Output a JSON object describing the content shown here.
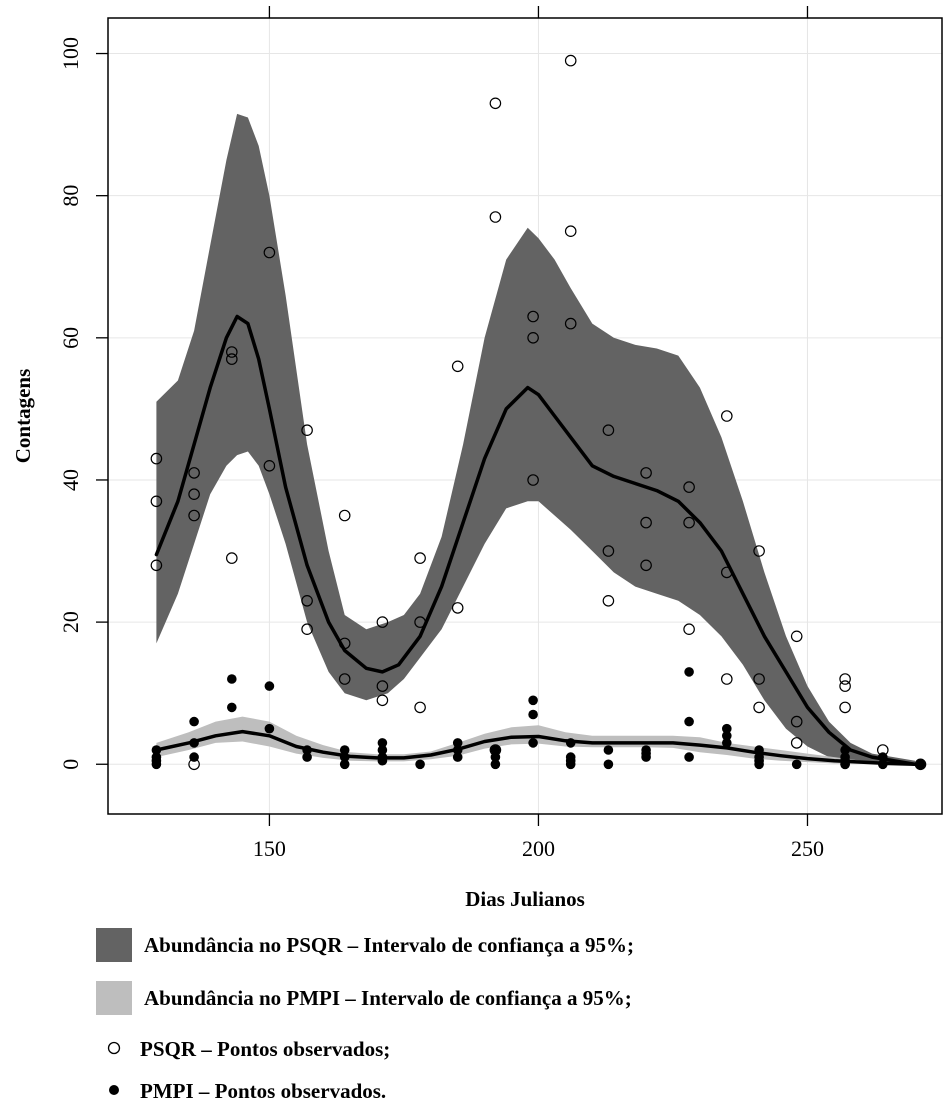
{
  "chart_data": {
    "type": "line",
    "xlabel": "Dias Julianos",
    "ylabel": "Contagens",
    "xlim": [
      120,
      275
    ],
    "ylim": [
      -7,
      105
    ],
    "x_ticks": [
      150,
      200,
      250
    ],
    "y_ticks": [
      0,
      20,
      40,
      60,
      80,
      100
    ],
    "grid": true,
    "colors": {
      "psqr_band": "#636363",
      "pmpi_band": "#bebebe",
      "line": "#000000",
      "grid": "#e6e6e6"
    },
    "bands": [
      {
        "name": "Abundância no PSQR – Intervalo de confiança a 95%;",
        "x": [
          129,
          133,
          136,
          139,
          142,
          144,
          146,
          148,
          150,
          153,
          157,
          161,
          164,
          168,
          172,
          175,
          178,
          182,
          186,
          190,
          194,
          198,
          200,
          203,
          206,
          210,
          214,
          218,
          222,
          226,
          230,
          234,
          238,
          242,
          246,
          250,
          254,
          258,
          262,
          266,
          270
        ],
        "upper": [
          51,
          54,
          61,
          73,
          85,
          91.5,
          91,
          87,
          80,
          66,
          45,
          30,
          21,
          19,
          20,
          21,
          24,
          32,
          45,
          60,
          71,
          75.5,
          74,
          71,
          67,
          62,
          60,
          59,
          58.5,
          57.5,
          53,
          46,
          37,
          27,
          18,
          11,
          6,
          3,
          1.5,
          1,
          0.5
        ],
        "lower": [
          17,
          24,
          31,
          38,
          42,
          43.5,
          44,
          42,
          38,
          31,
          20,
          13,
          10,
          9,
          10,
          12,
          15,
          19,
          25,
          31,
          36,
          37,
          37,
          35,
          33,
          30,
          27,
          25,
          24,
          23,
          21,
          18,
          14,
          9,
          5,
          2.5,
          1,
          0.5,
          0.2,
          0.1,
          0
        ]
      },
      {
        "name": "Abundância no PMPI – Intervalo de confiança a 95%;",
        "x": [
          129,
          135,
          140,
          145,
          150,
          155,
          160,
          165,
          170,
          175,
          180,
          185,
          190,
          195,
          200,
          205,
          210,
          215,
          220,
          225,
          230,
          235,
          240,
          245,
          250,
          255,
          260,
          265,
          270
        ],
        "upper": [
          3,
          4.5,
          6,
          6.7,
          6,
          4,
          2.7,
          1.7,
          1.4,
          1.4,
          1.8,
          3,
          4.3,
          5.2,
          5.5,
          4.5,
          4,
          4,
          4,
          4,
          3.8,
          3,
          2.5,
          2,
          1.5,
          1,
          0.5,
          0.3,
          0.1
        ],
        "lower": [
          1,
          2,
          3,
          3.2,
          2.5,
          1.5,
          0.9,
          0.5,
          0.4,
          0.4,
          0.7,
          1.2,
          2.2,
          2.8,
          2.9,
          2.5,
          2.4,
          2.4,
          2.4,
          2.3,
          1.7,
          1.3,
          0.8,
          0.5,
          0.3,
          0.1,
          0.05,
          0,
          0
        ]
      }
    ],
    "series": [
      {
        "x": [
          129,
          133,
          136,
          139,
          142,
          144,
          146,
          148,
          150,
          153,
          157,
          161,
          164,
          168,
          171,
          174,
          178,
          182,
          186,
          190,
          194,
          198,
          200,
          203,
          206,
          210,
          214,
          218,
          222,
          226,
          230,
          234,
          238,
          242,
          246,
          250,
          254,
          258,
          262,
          266,
          270
        ],
        "y": [
          29.5,
          37,
          45,
          53,
          60,
          63,
          62,
          57,
          50,
          39,
          28,
          20,
          16,
          13.5,
          13,
          14,
          18,
          25,
          34,
          43,
          50,
          53,
          52,
          49,
          46,
          42,
          40.5,
          39.5,
          38.5,
          37,
          34,
          30,
          24,
          18,
          13,
          8,
          4.5,
          2,
          1,
          0.5,
          0
        ]
      },
      {
        "x": [
          129,
          135,
          140,
          145,
          150,
          155,
          160,
          165,
          170,
          175,
          180,
          185,
          190,
          195,
          200,
          205,
          210,
          215,
          220,
          225,
          230,
          235,
          240,
          245,
          250,
          255,
          260,
          265,
          270
        ],
        "y": [
          2,
          3,
          4,
          4.6,
          4,
          2.5,
          1.7,
          1.1,
          0.9,
          0.9,
          1.3,
          2.1,
          3.2,
          3.8,
          3.9,
          3.3,
          3,
          3,
          3,
          3,
          2.7,
          2.3,
          1.7,
          1.2,
          0.8,
          0.5,
          0.3,
          0.1,
          0
        ]
      }
    ],
    "points": [
      {
        "name": "PSQR – Pontos observados;",
        "marker": "open-circle",
        "x": [
          129,
          129,
          129,
          136,
          136,
          136,
          136,
          143,
          143,
          143,
          150,
          150,
          157,
          157,
          157,
          164,
          164,
          164,
          171,
          171,
          171,
          178,
          178,
          178,
          185,
          185,
          192,
          192,
          192,
          199,
          199,
          199,
          206,
          206,
          206,
          213,
          213,
          213,
          220,
          220,
          220,
          228,
          228,
          228,
          235,
          235,
          235,
          241,
          241,
          241,
          248,
          248,
          248,
          257,
          257,
          257,
          264,
          271
        ],
        "y": [
          43,
          37,
          28,
          41,
          38,
          35,
          0,
          58,
          57,
          29,
          72,
          42,
          47,
          23,
          19,
          35,
          17,
          12,
          20,
          11,
          9,
          29,
          20,
          8,
          56,
          22,
          93,
          77,
          2,
          63,
          60,
          40,
          99,
          75,
          62,
          47,
          30,
          23,
          41,
          34,
          28,
          39,
          34,
          19,
          49,
          27,
          12,
          30,
          12,
          8,
          18,
          6,
          3,
          12,
          11,
          8,
          2,
          0
        ]
      },
      {
        "name": "PMPI – Pontos observados.",
        "marker": "filled-dot",
        "x": [
          129,
          129,
          129,
          129,
          136,
          136,
          136,
          143,
          143,
          150,
          150,
          157,
          157,
          164,
          164,
          164,
          171,
          171,
          171,
          171,
          178,
          185,
          185,
          185,
          192,
          192,
          192,
          199,
          199,
          199,
          206,
          206,
          206,
          206,
          213,
          213,
          220,
          220,
          220,
          228,
          228,
          228,
          235,
          235,
          235,
          241,
          241,
          241,
          241,
          248,
          257,
          257,
          257,
          257,
          257,
          264,
          264,
          271
        ],
        "y": [
          2,
          1,
          0.5,
          0,
          6,
          3,
          1,
          12,
          8,
          11,
          5,
          2,
          1,
          2,
          1,
          0,
          3,
          2,
          1,
          0.5,
          0,
          3,
          2,
          1,
          2,
          1,
          0,
          9,
          7,
          3,
          3,
          1,
          0.5,
          0,
          2,
          0,
          2,
          1.5,
          1,
          13,
          6,
          1,
          5,
          4,
          3,
          2,
          1,
          0.5,
          0,
          0,
          2,
          1,
          0.5,
          0,
          0,
          1,
          0,
          0
        ]
      }
    ],
    "legend": [
      {
        "label": "Abundância no PSQR – Intervalo de confiança a 95%;",
        "swatch": "dark-gray-box"
      },
      {
        "label": "Abundância no PMPI – Intervalo de confiança a 95%;",
        "swatch": "light-gray-box"
      },
      {
        "label": "PSQR – Pontos observados;",
        "swatch": "open-circle"
      },
      {
        "label": "PMPI – Pontos observados.",
        "swatch": "filled-dot"
      }
    ],
    "legend_position": "bottom"
  }
}
